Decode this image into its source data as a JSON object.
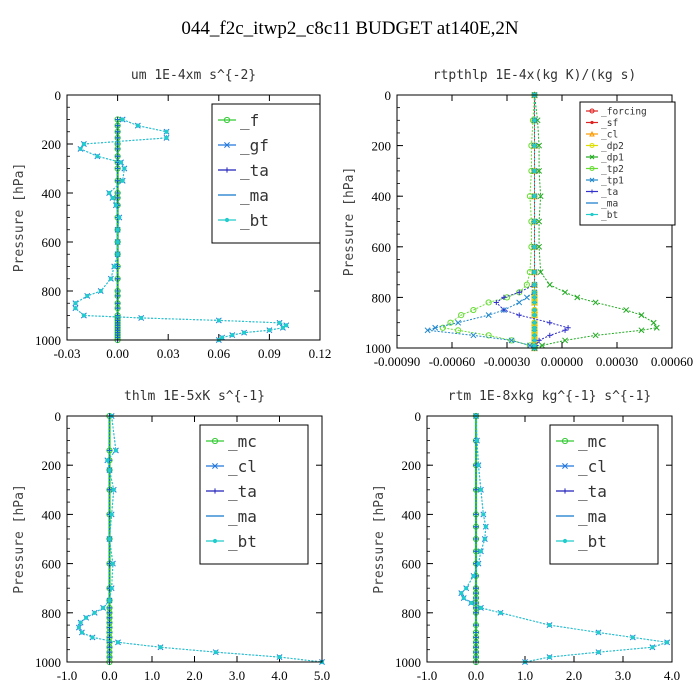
{
  "figure_title": "044_f2c_itwp2_c8c11  BUDGET at140E,2N",
  "chart_data": [
    {
      "type": "line",
      "title": "um  1E-4xm s^{-2}",
      "ylabel": "Pressure [hPa]",
      "xlim": [
        -0.03,
        0.12
      ],
      "ylim": [
        1000,
        0
      ],
      "xticks": [
        "-0.03",
        "0.00",
        "0.03",
        "0.06",
        "0.09",
        "0.12"
      ],
      "yticks": [
        "0",
        "200",
        "400",
        "600",
        "800",
        "1000"
      ],
      "legend_position": "top-right",
      "legend_size": "large",
      "pressure": [
        100,
        125,
        150,
        175,
        200,
        220,
        250,
        275,
        300,
        350,
        400,
        420,
        450,
        500,
        550,
        600,
        650,
        700,
        750,
        800,
        820,
        850,
        870,
        900,
        910,
        920,
        930,
        940,
        950,
        960,
        970,
        980,
        990,
        1000
      ],
      "series": [
        {
          "name": "_f",
          "color": "#33cc33",
          "marker": "o",
          "values": [
            0,
            0,
            0,
            0,
            0,
            0,
            0,
            0,
            0,
            0,
            0,
            0,
            0,
            0,
            0,
            0,
            0,
            0,
            0,
            0,
            0,
            0,
            0,
            0,
            0,
            0,
            0,
            0,
            0,
            0,
            0,
            0,
            0,
            0
          ]
        },
        {
          "name": "_gf",
          "color": "#2277dd",
          "marker": "x",
          "values": [
            0.003,
            0.012,
            0.029,
            0.029,
            -0.02,
            -0.022,
            -0.012,
            0.002,
            0.004,
            0.003,
            -0.005,
            -0.003,
            -0.001,
            0.001,
            0.0,
            0.0,
            0.0,
            -0.002,
            -0.004,
            -0.01,
            -0.018,
            -0.025,
            -0.025,
            -0.02,
            0.014,
            0.06,
            0.096,
            0.1,
            0.098,
            0.09,
            0.075,
            0.068,
            0.062,
            0.06
          ]
        },
        {
          "name": "_ta",
          "color": "#2222bb",
          "marker": "+",
          "values": [
            0,
            0,
            0,
            0,
            0,
            0,
            0,
            0,
            0,
            0,
            0,
            0,
            0,
            0,
            0,
            0,
            0,
            0,
            0,
            0,
            0,
            0,
            0,
            0,
            0,
            0,
            0,
            0,
            0,
            0,
            0,
            0,
            0,
            0
          ]
        },
        {
          "name": "_ma",
          "color": "#1177cc",
          "marker": "-",
          "values": [
            0,
            0,
            0,
            0,
            0,
            0,
            0,
            0,
            0,
            0,
            0,
            0,
            0,
            0,
            0,
            0,
            0,
            0,
            0,
            0,
            0,
            0,
            0,
            0,
            0,
            0,
            0,
            0,
            0,
            0,
            0,
            0,
            0,
            0
          ]
        },
        {
          "name": "_bt",
          "color": "#22cccc",
          "marker": "*",
          "values": [
            0.003,
            0.012,
            0.029,
            0.029,
            -0.02,
            -0.022,
            -0.012,
            0.002,
            0.004,
            0.003,
            -0.005,
            -0.003,
            -0.001,
            0.001,
            0.0,
            0.0,
            0.0,
            -0.002,
            -0.004,
            -0.01,
            -0.018,
            -0.025,
            -0.025,
            -0.02,
            0.014,
            0.06,
            0.096,
            0.1,
            0.098,
            0.09,
            0.075,
            0.068,
            0.062,
            0.06
          ]
        }
      ]
    },
    {
      "type": "line",
      "title": "rtpthlp  1E-4x(kg K)/(kg s)",
      "ylabel": "Pressure [hPa]",
      "xlim": [
        -0.0009,
        0.0009
      ],
      "ylim": [
        1000,
        0
      ],
      "xticks": [
        "-0.00090",
        "-0.00060",
        "-0.00030",
        "0.00000",
        "0.00030",
        "0.00060"
      ],
      "yticks": [
        "0",
        "200",
        "400",
        "600",
        "800",
        "1000"
      ],
      "legend_position": "top-right",
      "legend_size": "small",
      "pressure": [
        0,
        100,
        200,
        300,
        400,
        500,
        600,
        700,
        750,
        780,
        800,
        820,
        850,
        870,
        900,
        920,
        930,
        950,
        970,
        990,
        1000
      ],
      "series": [
        {
          "name": "_forcing",
          "color": "#dd2222",
          "marker": "o",
          "values": [
            0,
            0,
            0,
            0,
            0,
            0,
            0,
            0,
            0,
            0,
            0,
            0,
            0,
            0,
            0,
            0,
            0,
            0,
            0,
            0,
            0
          ]
        },
        {
          "name": "_sf",
          "color": "#dd2222",
          "marker": "*",
          "values": [
            0,
            0,
            0,
            0,
            0,
            0,
            0,
            0,
            0,
            0,
            0,
            0,
            0,
            0,
            0,
            0,
            0,
            0,
            0,
            0,
            0
          ]
        },
        {
          "name": "_cl",
          "color": "#ff9900",
          "marker": "^",
          "values": [
            0,
            0,
            0,
            0,
            0,
            0,
            0,
            0,
            0,
            0,
            0,
            0,
            0,
            0,
            0,
            0,
            0,
            0,
            0,
            0,
            0
          ]
        },
        {
          "name": "_dp2",
          "color": "#dddd00",
          "marker": "o",
          "values": [
            0,
            0,
            0,
            0,
            0,
            0,
            0,
            0,
            0,
            0,
            0,
            0,
            0,
            0,
            0,
            0,
            0,
            0,
            0,
            0,
            0
          ]
        },
        {
          "name": "_dp1",
          "color": "#22aa22",
          "marker": "x",
          "values": [
            0,
            2e-05,
            3e-05,
            3e-05,
            4e-05,
            3e-05,
            3e-05,
            4e-05,
            0.0001,
            0.0002,
            0.00028,
            0.0004,
            0.0006,
            0.0007,
            0.00078,
            0.0008,
            0.0007,
            0.0004,
            0.0002,
            5e-05,
            0
          ]
        },
        {
          "name": "_tp2",
          "color": "#66dd33",
          "marker": "o",
          "values": [
            0,
            -1e-05,
            -2e-05,
            -2e-05,
            -3e-05,
            -2e-05,
            -2e-05,
            -3e-05,
            -5e-05,
            -0.0001,
            -0.00018,
            -0.0003,
            -0.0004,
            -0.00048,
            -0.00055,
            -0.0006,
            -0.0005,
            -0.0003,
            -0.00015,
            -3e-05,
            0
          ]
        },
        {
          "name": "_tp1",
          "color": "#2288cc",
          "marker": "x",
          "values": [
            0,
            0,
            0,
            0,
            0,
            0,
            0,
            0,
            0,
            0,
            -5e-05,
            -0.0001,
            -0.0002,
            -0.0003,
            -0.0005,
            -0.00065,
            -0.0007,
            -0.0004,
            -0.00015,
            -3e-05,
            0
          ]
        },
        {
          "name": "_ta",
          "color": "#3333cc",
          "marker": "+",
          "values": [
            0,
            0,
            0,
            0,
            0,
            0,
            0,
            0,
            0,
            -0.0001,
            -0.0002,
            -0.00025,
            -0.0002,
            -0.0001,
            0.0001,
            0.00022,
            0.0002,
            0.0001,
            3e-05,
            1e-05,
            0
          ]
        },
        {
          "name": "_ma",
          "color": "#1177cc",
          "marker": "-",
          "values": [
            0,
            0,
            0,
            0,
            0,
            0,
            0,
            0,
            0,
            0,
            0,
            0,
            0,
            0,
            0,
            0,
            0,
            0,
            0,
            0,
            0
          ]
        },
        {
          "name": "_bt",
          "color": "#22cccc",
          "marker": "*",
          "values": [
            0,
            0,
            0,
            0,
            0,
            0,
            0,
            0,
            0,
            0,
            0,
            0,
            0,
            0,
            0,
            0,
            0,
            0,
            0,
            0,
            0
          ]
        }
      ]
    },
    {
      "type": "line",
      "title": "thlm  1E-5xK s^{-1}",
      "ylabel": "Pressure [hPa]",
      "xlim": [
        -1.0,
        5.0
      ],
      "ylim": [
        1000,
        0
      ],
      "xticks": [
        "-1.0",
        "0.0",
        "1.0",
        "2.0",
        "3.0",
        "4.0",
        "5.0"
      ],
      "yticks": [
        "0",
        "200",
        "400",
        "600",
        "800",
        "1000"
      ],
      "legend_position": "top-right",
      "legend_size": "large",
      "pressure": [
        0,
        140,
        180,
        220,
        300,
        400,
        500,
        600,
        700,
        750,
        780,
        800,
        820,
        840,
        860,
        880,
        900,
        920,
        940,
        960,
        980,
        1000
      ],
      "series": [
        {
          "name": "_mc",
          "color": "#33cc33",
          "marker": "o",
          "values": [
            0,
            0,
            0,
            0,
            0,
            0,
            0,
            0,
            0,
            0,
            0,
            0,
            0,
            0,
            0,
            0,
            0,
            0,
            0,
            0,
            0,
            0
          ]
        },
        {
          "name": "_cl",
          "color": "#2277dd",
          "marker": "x",
          "values": [
            0.05,
            0.15,
            -0.05,
            0.0,
            0.1,
            0.05,
            0.0,
            0.08,
            0.05,
            0.0,
            -0.15,
            -0.35,
            -0.55,
            -0.68,
            -0.72,
            -0.65,
            -0.4,
            0.2,
            1.2,
            2.5,
            4.0,
            5.0
          ]
        },
        {
          "name": "_ta",
          "color": "#2222bb",
          "marker": "+",
          "values": [
            0,
            0,
            0,
            0,
            0,
            0,
            0,
            0,
            0,
            0,
            0,
            0,
            0,
            0,
            0,
            0,
            0,
            0,
            0,
            0,
            0,
            0
          ]
        },
        {
          "name": "_ma",
          "color": "#1177cc",
          "marker": "-",
          "values": [
            0,
            0,
            0,
            0,
            0,
            0,
            0,
            0,
            0,
            0,
            0,
            0,
            0,
            0,
            0,
            0,
            0,
            0,
            0,
            0,
            0,
            0
          ]
        },
        {
          "name": "_bt",
          "color": "#22cccc",
          "marker": "*",
          "values": [
            0.05,
            0.15,
            -0.05,
            0.0,
            0.1,
            0.05,
            0.0,
            0.08,
            0.05,
            0.0,
            -0.15,
            -0.35,
            -0.55,
            -0.68,
            -0.72,
            -0.65,
            -0.4,
            0.2,
            1.2,
            2.5,
            4.0,
            5.0
          ]
        }
      ]
    },
    {
      "type": "line",
      "title": "rtm  1E-8xkg kg^{-1} s^{-1}",
      "ylabel": "Pressure [hPa]",
      "xlim": [
        -1.0,
        4.0
      ],
      "ylim": [
        1000,
        0
      ],
      "xticks": [
        "-1.0",
        "0.0",
        "1.0",
        "2.0",
        "3.0",
        "4.0"
      ],
      "yticks": [
        "0",
        "200",
        "400",
        "600",
        "800",
        "1000"
      ],
      "legend_position": "top-right",
      "legend_size": "large",
      "pressure": [
        0,
        100,
        200,
        300,
        400,
        450,
        500,
        550,
        600,
        650,
        700,
        720,
        740,
        760,
        780,
        800,
        850,
        880,
        900,
        920,
        940,
        960,
        980,
        1000
      ],
      "series": [
        {
          "name": "_mc",
          "color": "#33cc33",
          "marker": "o",
          "values": [
            0,
            0,
            0,
            0,
            0,
            0,
            0,
            0,
            0,
            0,
            0,
            0,
            0,
            0,
            0,
            0,
            0,
            0,
            0,
            0,
            0,
            0,
            0,
            0
          ]
        },
        {
          "name": "_cl",
          "color": "#2277dd",
          "marker": "x",
          "values": [
            0.0,
            0.02,
            0.05,
            0.1,
            0.15,
            0.2,
            0.18,
            0.1,
            0.05,
            -0.05,
            -0.2,
            -0.3,
            -0.25,
            -0.1,
            0.1,
            0.5,
            1.5,
            2.5,
            3.2,
            3.9,
            3.6,
            2.5,
            1.5,
            1.0
          ]
        },
        {
          "name": "_ta",
          "color": "#2222bb",
          "marker": "+",
          "values": [
            0,
            0,
            0,
            0,
            0,
            0,
            0,
            0,
            0,
            0,
            0,
            0,
            0,
            0,
            0,
            0,
            0,
            0,
            0,
            0,
            0,
            0,
            0,
            0
          ]
        },
        {
          "name": "_ma",
          "color": "#1177cc",
          "marker": "-",
          "values": [
            0,
            0,
            0,
            0,
            0,
            0,
            0,
            0,
            0,
            0,
            0,
            0,
            0,
            0,
            0,
            0,
            0,
            0,
            0,
            0,
            0,
            0,
            0,
            0
          ]
        },
        {
          "name": "_bt",
          "color": "#22cccc",
          "marker": "*",
          "values": [
            0.0,
            0.02,
            0.05,
            0.1,
            0.15,
            0.2,
            0.18,
            0.1,
            0.05,
            -0.05,
            -0.2,
            -0.3,
            -0.25,
            -0.1,
            0.1,
            0.5,
            1.5,
            2.5,
            3.2,
            3.9,
            3.6,
            2.5,
            1.5,
            1.0
          ]
        }
      ]
    }
  ]
}
